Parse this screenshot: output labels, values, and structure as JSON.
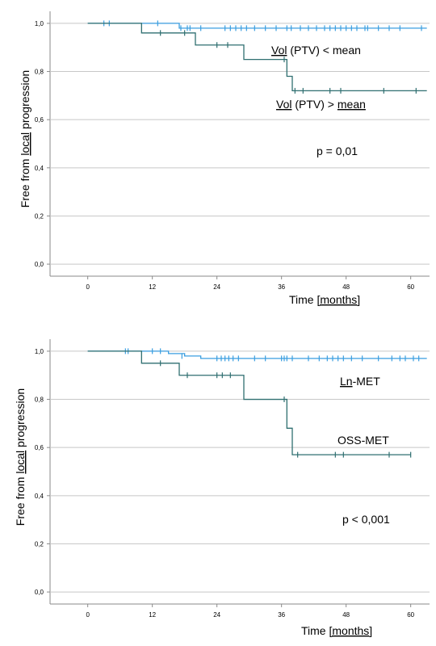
{
  "colors": {
    "curve_a": "#3a9ee0",
    "curve_b": "#2f6f70",
    "grid": "#c8c8c8",
    "axis": "#8a8a8a",
    "underline": "#d9534f"
  },
  "chart_data": [
    {
      "type": "line",
      "subtype": "kaplan-meier step",
      "xlabel_main": "Time ",
      "xlabel_unit": "[months]",
      "ylabel_main": "Free from ",
      "ylabel_under": "local",
      "ylabel_end": " progression",
      "xlim": [
        -7,
        63.5
      ],
      "ylim": [
        -0.05,
        1.05
      ],
      "x_ticks": [
        0,
        12,
        24,
        36,
        48,
        60
      ],
      "x_tick_labels": [
        "0",
        "12",
        "24",
        "36",
        "48",
        "60"
      ],
      "y_ticks": [
        0,
        0.2,
        0.4,
        0.6,
        0.8,
        1.0
      ],
      "y_tick_labels": [
        "0,0",
        "0,2",
        "0,4",
        "0,6",
        "0,8",
        "1,0"
      ],
      "grid": "horizontal",
      "annotation": "p = 0,01",
      "series": [
        {
          "label_pre": "",
          "label_under": "Vol",
          "label_post": " (PTV) < mean",
          "label_under2": "",
          "color_key": "curve_a",
          "steps": [
            [
              0,
              1.0
            ],
            [
              17,
              0.98
            ],
            [
              63,
              0.98
            ]
          ],
          "censored": [
            [
              3,
              1.0
            ],
            [
              4,
              1.0
            ],
            [
              13,
              1.0
            ],
            [
              17.3,
              0.98
            ],
            [
              18.5,
              0.98
            ],
            [
              19,
              0.98
            ],
            [
              21,
              0.98
            ],
            [
              25.5,
              0.98
            ],
            [
              26.5,
              0.98
            ],
            [
              27.5,
              0.98
            ],
            [
              28.5,
              0.98
            ],
            [
              29.5,
              0.98
            ],
            [
              31,
              0.98
            ],
            [
              33,
              0.98
            ],
            [
              35,
              0.98
            ],
            [
              37,
              0.98
            ],
            [
              37.8,
              0.98
            ],
            [
              39.5,
              0.98
            ],
            [
              41,
              0.98
            ],
            [
              42.5,
              0.98
            ],
            [
              44,
              0.98
            ],
            [
              45,
              0.98
            ],
            [
              46,
              0.98
            ],
            [
              47,
              0.98
            ],
            [
              48,
              0.98
            ],
            [
              49,
              0.98
            ],
            [
              50,
              0.98
            ],
            [
              51.5,
              0.98
            ],
            [
              52,
              0.98
            ],
            [
              54,
              0.98
            ],
            [
              56,
              0.98
            ],
            [
              58,
              0.98
            ],
            [
              62,
              0.98
            ]
          ]
        },
        {
          "label_pre": "",
          "label_under": "Vol",
          "label_post": " (PTV) > ",
          "label_under2": "mean",
          "color_key": "curve_b",
          "steps": [
            [
              0,
              1.0
            ],
            [
              10,
              0.96
            ],
            [
              20,
              0.91
            ],
            [
              29,
              0.85
            ],
            [
              37,
              0.78
            ],
            [
              38,
              0.72
            ],
            [
              63,
              0.72
            ]
          ],
          "censored": [
            [
              13.5,
              0.96
            ],
            [
              18,
              0.96
            ],
            [
              24,
              0.91
            ],
            [
              26,
              0.91
            ],
            [
              36.5,
              0.85
            ],
            [
              38.5,
              0.72
            ],
            [
              40,
              0.72
            ],
            [
              45,
              0.72
            ],
            [
              47,
              0.72
            ],
            [
              55,
              0.72
            ],
            [
              61,
              0.72
            ]
          ]
        }
      ]
    },
    {
      "type": "line",
      "subtype": "kaplan-meier step",
      "xlabel_main": "Time ",
      "xlabel_unit": "[months]",
      "ylabel_main": "Free from ",
      "ylabel_under": "local",
      "ylabel_end": " progression",
      "xlim": [
        -7,
        63.5
      ],
      "ylim": [
        -0.05,
        1.05
      ],
      "x_ticks": [
        0,
        12,
        24,
        36,
        48,
        60
      ],
      "x_tick_labels": [
        "0",
        "12",
        "24",
        "36",
        "48",
        "60"
      ],
      "y_ticks": [
        0,
        0.2,
        0.4,
        0.6,
        0.8,
        1.0
      ],
      "y_tick_labels": [
        "0,0",
        "0,2",
        "0,4",
        "0,6",
        "0,8",
        "1,0"
      ],
      "grid": "horizontal",
      "annotation": "p < 0,001",
      "series": [
        {
          "label_pre": "",
          "label_under": "Ln",
          "label_post": "-MET",
          "label_under2": "",
          "color_key": "curve_a",
          "steps": [
            [
              0,
              1.0
            ],
            [
              15,
              0.99
            ],
            [
              18,
              0.98
            ],
            [
              21,
              0.97
            ],
            [
              63,
              0.97
            ]
          ],
          "censored": [
            [
              7,
              1.0
            ],
            [
              7.5,
              1.0
            ],
            [
              12,
              1.0
            ],
            [
              13.5,
              1.0
            ],
            [
              17.5,
              0.98
            ],
            [
              24,
              0.97
            ],
            [
              24.8,
              0.97
            ],
            [
              25.5,
              0.97
            ],
            [
              26.2,
              0.97
            ],
            [
              27,
              0.97
            ],
            [
              28,
              0.97
            ],
            [
              31,
              0.97
            ],
            [
              33,
              0.97
            ],
            [
              36,
              0.97
            ],
            [
              36.5,
              0.97
            ],
            [
              37,
              0.97
            ],
            [
              38,
              0.97
            ],
            [
              41,
              0.97
            ],
            [
              43,
              0.97
            ],
            [
              44.5,
              0.97
            ],
            [
              45.5,
              0.97
            ],
            [
              46.5,
              0.97
            ],
            [
              47.5,
              0.97
            ],
            [
              49,
              0.97
            ],
            [
              51,
              0.97
            ],
            [
              54,
              0.97
            ],
            [
              56.5,
              0.97
            ],
            [
              58,
              0.97
            ],
            [
              59,
              0.97
            ],
            [
              60.5,
              0.97
            ],
            [
              61.5,
              0.97
            ]
          ]
        },
        {
          "label_pre": "OSS-MET",
          "label_under": "",
          "label_post": "",
          "label_under2": "",
          "color_key": "curve_b",
          "steps": [
            [
              0,
              1.0
            ],
            [
              10,
              0.95
            ],
            [
              17,
              0.9
            ],
            [
              29,
              0.8
            ],
            [
              37,
              0.68
            ],
            [
              38,
              0.57
            ],
            [
              60,
              0.57
            ]
          ],
          "censored": [
            [
              13.5,
              0.95
            ],
            [
              18.5,
              0.9
            ],
            [
              24,
              0.9
            ],
            [
              25,
              0.9
            ],
            [
              26.5,
              0.9
            ],
            [
              36.5,
              0.8
            ],
            [
              39,
              0.57
            ],
            [
              46,
              0.57
            ],
            [
              47.5,
              0.57
            ],
            [
              56,
              0.57
            ],
            [
              60,
              0.57
            ]
          ]
        }
      ]
    }
  ]
}
